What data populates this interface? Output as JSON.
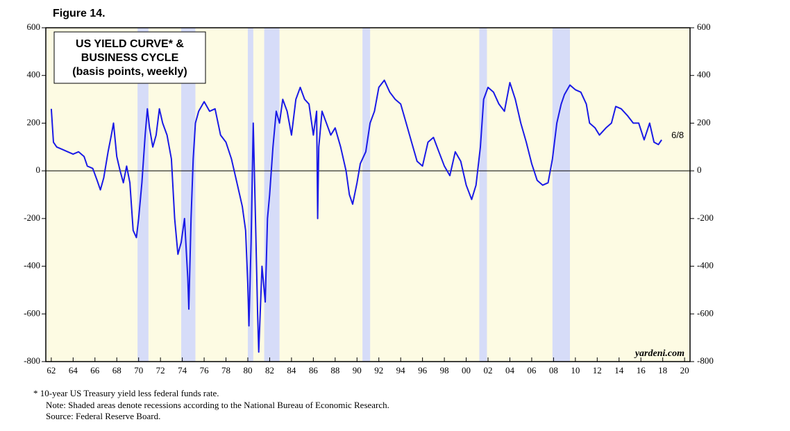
{
  "chart_data": {
    "type": "line",
    "figure_label": "Figure 14.",
    "title_lines": [
      "US YIELD CURVE* &",
      "BUSINESS CYCLE",
      "(basis points, weekly)"
    ],
    "end_label": "6/8",
    "watermark": "yardeni.com",
    "footnotes": [
      "*  10-year US Treasury yield less federal funds rate.",
      "Note: Shaded areas denote recessions according to the National Bureau of Economic Research.",
      "Source: Federal Reserve Board."
    ],
    "xlim": [
      1961.5,
      2020.5
    ],
    "ylim": [
      -800,
      600
    ],
    "yticks": [
      -800,
      -600,
      -400,
      -200,
      0,
      200,
      400,
      600
    ],
    "xticks": [
      {
        "value": 1962,
        "label": "62"
      },
      {
        "value": 1964,
        "label": "64"
      },
      {
        "value": 1966,
        "label": "66"
      },
      {
        "value": 1968,
        "label": "68"
      },
      {
        "value": 1970,
        "label": "70"
      },
      {
        "value": 1972,
        "label": "72"
      },
      {
        "value": 1974,
        "label": "74"
      },
      {
        "value": 1976,
        "label": "76"
      },
      {
        "value": 1978,
        "label": "78"
      },
      {
        "value": 1980,
        "label": "80"
      },
      {
        "value": 1982,
        "label": "82"
      },
      {
        "value": 1984,
        "label": "84"
      },
      {
        "value": 1986,
        "label": "86"
      },
      {
        "value": 1988,
        "label": "88"
      },
      {
        "value": 1990,
        "label": "90"
      },
      {
        "value": 1992,
        "label": "92"
      },
      {
        "value": 1994,
        "label": "94"
      },
      {
        "value": 1996,
        "label": "96"
      },
      {
        "value": 1998,
        "label": "98"
      },
      {
        "value": 2000,
        "label": "00"
      },
      {
        "value": 2002,
        "label": "02"
      },
      {
        "value": 2004,
        "label": "04"
      },
      {
        "value": 2006,
        "label": "06"
      },
      {
        "value": 2008,
        "label": "08"
      },
      {
        "value": 2010,
        "label": "10"
      },
      {
        "value": 2012,
        "label": "12"
      },
      {
        "value": 2014,
        "label": "14"
      },
      {
        "value": 2016,
        "label": "16"
      },
      {
        "value": 2018,
        "label": "18"
      },
      {
        "value": 2020,
        "label": "20"
      }
    ],
    "recessions": [
      [
        1969.9,
        1970.9
      ],
      [
        1973.9,
        1975.2
      ],
      [
        1980.0,
        1980.5
      ],
      [
        1981.5,
        1982.9
      ],
      [
        1990.5,
        1991.2
      ],
      [
        2001.2,
        2001.9
      ],
      [
        2007.9,
        2009.5
      ]
    ],
    "recession_color": "#d6dcf8",
    "background_color": "#fdfbe3",
    "x": [
      1962.0,
      1962.2,
      1962.5,
      1963,
      1963.5,
      1964,
      1964.5,
      1965,
      1965.3,
      1965.8,
      1966.2,
      1966.5,
      1966.8,
      1967.2,
      1967.5,
      1967.7,
      1968,
      1968.3,
      1968.6,
      1968.9,
      1969.2,
      1969.5,
      1969.8,
      1970.0,
      1970.3,
      1970.6,
      1970.8,
      1971.0,
      1971.3,
      1971.6,
      1971.9,
      1972.2,
      1972.6,
      1973.0,
      1973.3,
      1973.6,
      1973.9,
      1974.2,
      1974.5,
      1974.6,
      1974.8,
      1975.0,
      1975.2,
      1975.5,
      1976,
      1976.5,
      1977,
      1977.5,
      1978,
      1978.5,
      1979,
      1979.5,
      1979.8,
      1980.0,
      1980.1,
      1980.3,
      1980.5,
      1980.7,
      1980.9,
      1981.0,
      1981.3,
      1981.6,
      1981.8,
      1982.0,
      1982.3,
      1982.6,
      1982.9,
      1983.2,
      1983.6,
      1984.0,
      1984.4,
      1984.8,
      1985.2,
      1985.6,
      1986.0,
      1986.3,
      1986.4,
      1986.5,
      1986.8,
      1987.2,
      1987.6,
      1988.0,
      1988.5,
      1989,
      1989.3,
      1989.6,
      1990,
      1990.3,
      1990.8,
      1991.2,
      1991.6,
      1992,
      1992.5,
      1993,
      1993.5,
      1994,
      1994.5,
      1995,
      1995.5,
      1996,
      1996.5,
      1997,
      1997.5,
      1998,
      1998.5,
      1999,
      1999.5,
      2000,
      2000.5,
      2000.9,
      2001.3,
      2001.6,
      2002,
      2002.5,
      2003,
      2003.5,
      2004,
      2004.5,
      2005,
      2005.5,
      2006,
      2006.5,
      2007,
      2007.5,
      2007.9,
      2008.3,
      2008.7,
      2009,
      2009.5,
      2010,
      2010.5,
      2011,
      2011.3,
      2011.8,
      2012.2,
      2012.8,
      2013.3,
      2013.7,
      2014.2,
      2014.8,
      2015.3,
      2015.8,
      2016.3,
      2016.8,
      2017.2,
      2017.6,
      2017.9
    ],
    "series": [
      {
        "color": "#1a1ae6",
        "values": [
          260,
          120,
          100,
          90,
          80,
          70,
          80,
          60,
          20,
          10,
          -40,
          -80,
          -30,
          80,
          150,
          200,
          60,
          0,
          -50,
          20,
          -50,
          -250,
          -280,
          -200,
          -50,
          150,
          260,
          180,
          100,
          150,
          260,
          200,
          150,
          50,
          -200,
          -350,
          -300,
          -200,
          -450,
          -580,
          -200,
          50,
          200,
          250,
          290,
          250,
          260,
          150,
          120,
          50,
          -50,
          -150,
          -250,
          -480,
          -650,
          -300,
          200,
          -200,
          -600,
          -760,
          -400,
          -550,
          -200,
          -100,
          100,
          250,
          200,
          300,
          250,
          150,
          300,
          350,
          300,
          280,
          150,
          250,
          -200,
          100,
          250,
          200,
          150,
          180,
          100,
          0,
          -100,
          -140,
          -50,
          30,
          80,
          200,
          250,
          350,
          380,
          330,
          300,
          280,
          200,
          120,
          40,
          20,
          120,
          140,
          80,
          20,
          -20,
          80,
          40,
          -60,
          -120,
          -60,
          100,
          300,
          350,
          330,
          280,
          250,
          370,
          300,
          200,
          120,
          30,
          -40,
          -60,
          -50,
          50,
          200,
          280,
          320,
          360,
          340,
          330,
          280,
          200,
          180,
          150,
          180,
          200,
          270,
          260,
          230,
          200,
          200,
          130,
          200,
          120,
          110,
          130
        ]
      }
    ]
  }
}
